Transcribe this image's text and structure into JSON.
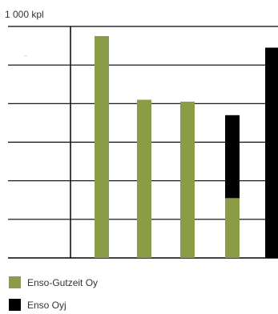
{
  "chart_data": {
    "type": "bar",
    "stacked": true,
    "unit_label": "1 000 kpl",
    "tiny_mark": "----",
    "grid": true,
    "legend_position": "bottom-left",
    "ylim": [
      0,
      6
    ],
    "categories": [
      "",
      "",
      "",
      "",
      ""
    ],
    "series": [
      {
        "name": "Enso-Gutzeit Oy",
        "color": "#8b9c46",
        "values": [
          5.75,
          4.1,
          4.05,
          1.55,
          0
        ]
      },
      {
        "name": "Enso Oyj",
        "color": "#000000",
        "values": [
          0,
          0,
          0,
          2.15,
          5.45
        ]
      }
    ]
  }
}
